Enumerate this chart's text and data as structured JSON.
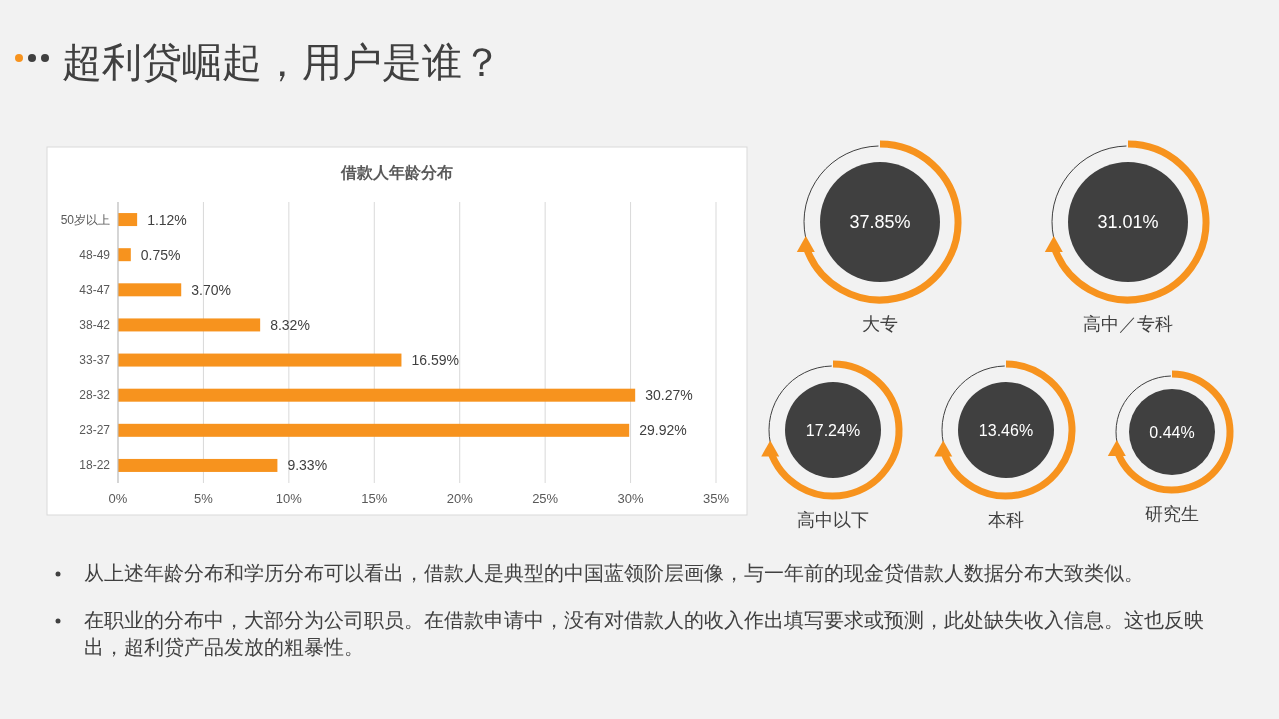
{
  "chart_data": [
    {
      "type": "other",
      "title": "超利贷崛起，用户是谁？",
      "annotations": [
        "从上述年龄分布和学历分布可以看出，借款人是典型的中国蓝领阶层画像，与一年前的现金贷借款人数据分布大致类似。",
        "在职业的分布中，大部分为公司职员。在借款申请中，没有对借款人的收入作出填写要求或预测，此处缺失收入信息。这也反映出，超利贷产品发放的粗暴性。"
      ]
    },
    {
      "type": "bar",
      "orientation": "horizontal",
      "title": "借款人年龄分布",
      "categories": [
        "50岁以上",
        "48-49",
        "43-47",
        "38-42",
        "33-37",
        "28-32",
        "23-27",
        "18-22"
      ],
      "values": [
        1.12,
        0.75,
        3.7,
        8.32,
        16.59,
        30.27,
        29.92,
        9.33
      ],
      "value_labels": [
        "1.12%",
        "0.75%",
        "3.70%",
        "8.32%",
        "16.59%",
        "30.27%",
        "29.92%",
        "9.33%"
      ],
      "color": "#f7931e",
      "xlim": [
        0,
        35
      ],
      "xticks": [
        {
          "value": 0,
          "label": "0%"
        },
        {
          "value": 5,
          "label": "5%"
        },
        {
          "value": 10,
          "label": "10%"
        },
        {
          "value": 15,
          "label": "15%"
        },
        {
          "value": 20,
          "label": "20%"
        },
        {
          "value": 25,
          "label": "25%"
        },
        {
          "value": 30,
          "label": "30%"
        },
        {
          "value": 35,
          "label": "35%"
        }
      ],
      "grid": "x"
    },
    {
      "type": "other",
      "categories": [
        "大专",
        "高中／专科",
        "高中以下",
        "本科",
        "研究生"
      ],
      "values": [
        37.85,
        31.01,
        17.24,
        13.46,
        0.44
      ],
      "value_labels": [
        "37.85%",
        "31.01%",
        "17.24%",
        "13.46%",
        "0.44%"
      ],
      "color": "#404040"
    }
  ]
}
